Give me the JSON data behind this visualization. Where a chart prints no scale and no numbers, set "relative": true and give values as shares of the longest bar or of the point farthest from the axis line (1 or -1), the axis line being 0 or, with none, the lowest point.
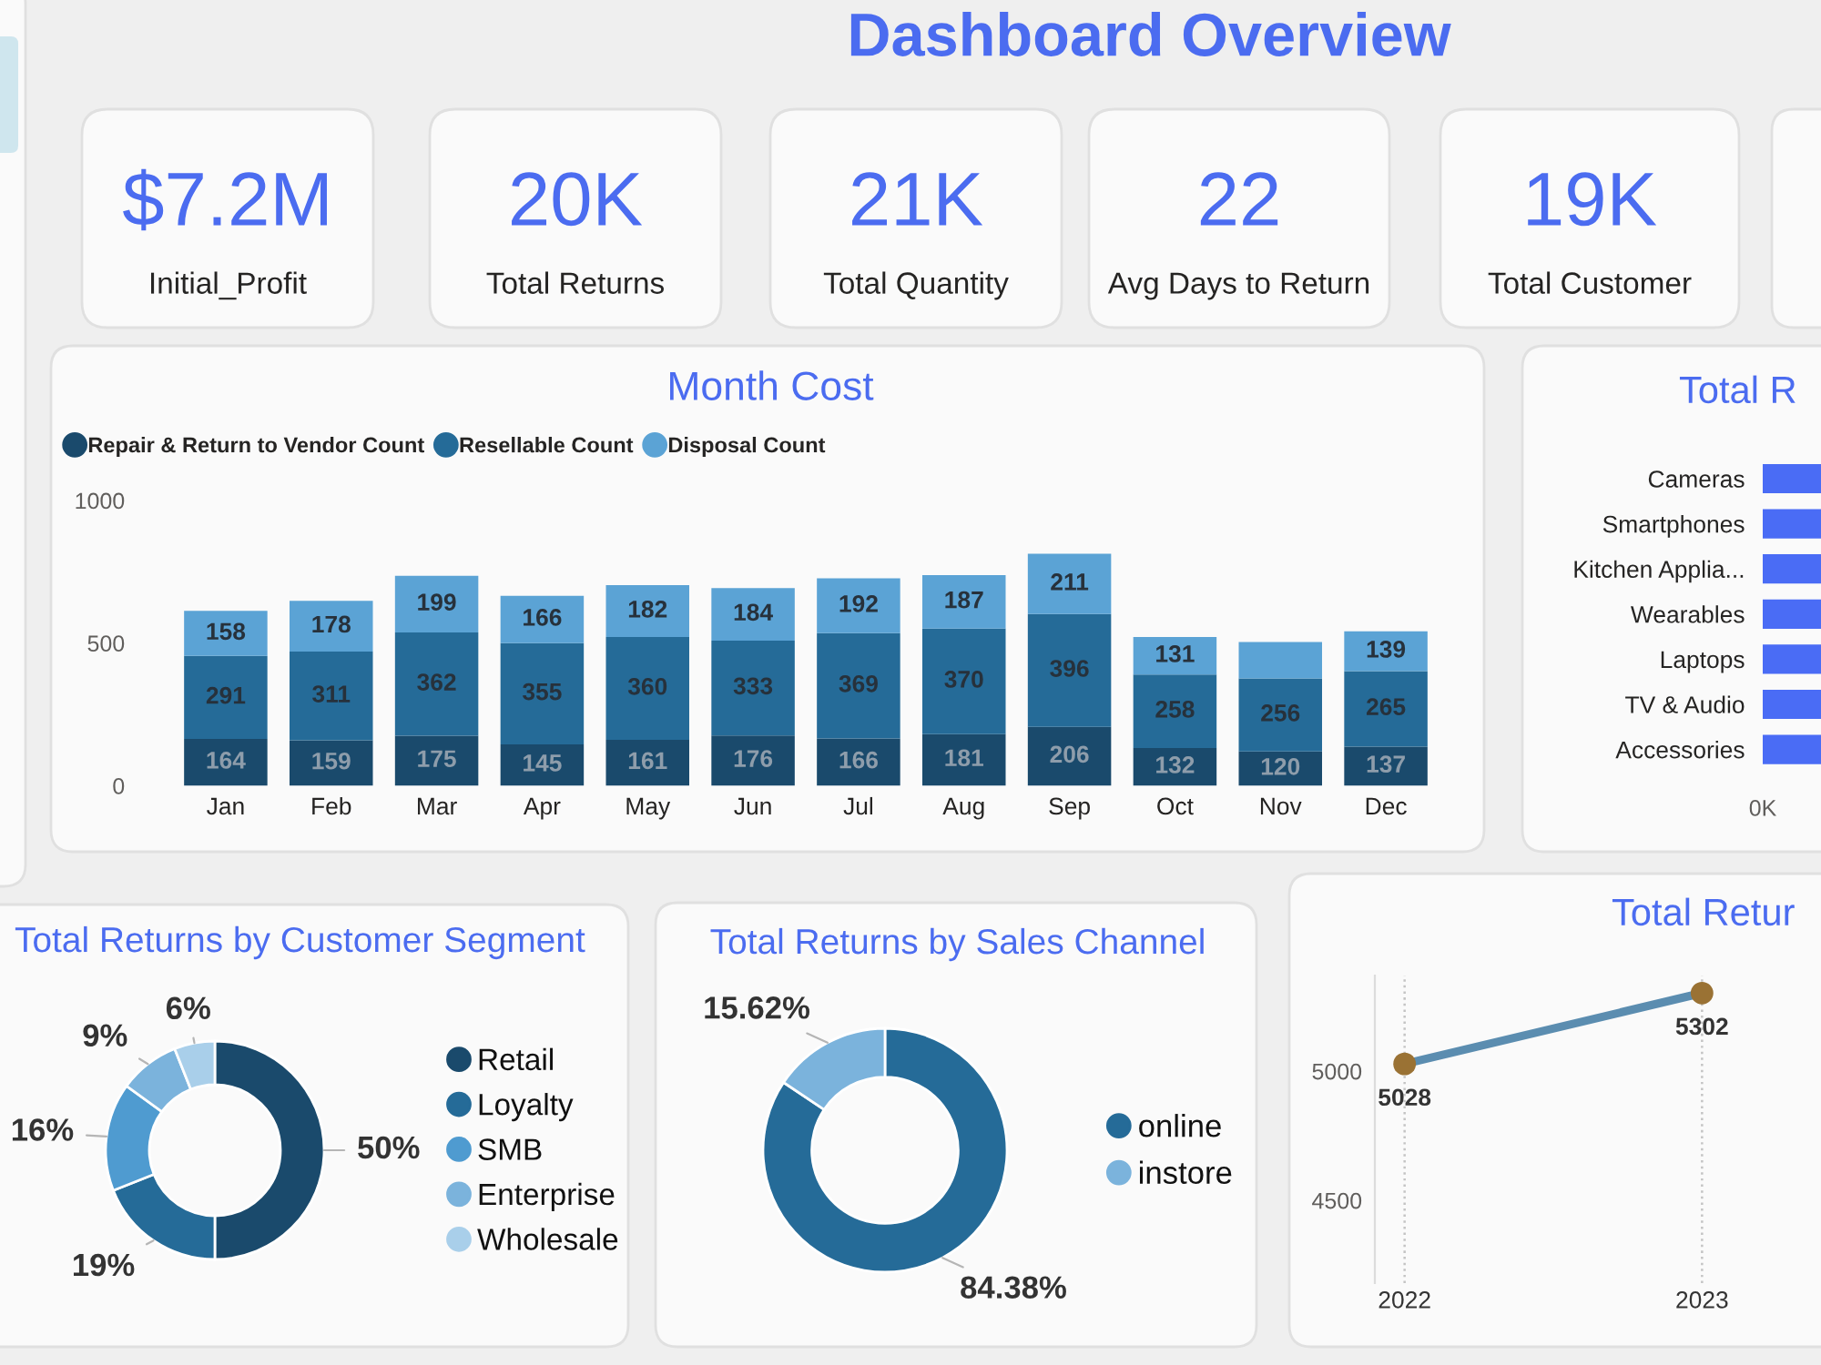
{
  "chart_data": [
    {
      "type": "other",
      "title": "Dashboard Overview",
      "categories": [
        "Initial_Profit",
        "Total Returns",
        "Total Quantity",
        "Avg Days to Return",
        "Total Customer"
      ],
      "value_labels": [
        "$7.2M",
        "20K",
        "21K",
        "22",
        "19K"
      ],
      "color": "#4b6cf0"
    },
    {
      "type": "bar",
      "title": "Month Cost",
      "stacked": true,
      "categories": [
        "Jan",
        "Feb",
        "Mar",
        "Apr",
        "May",
        "Jun",
        "Jul",
        "Aug",
        "Sep",
        "Oct",
        "Nov",
        "Dec"
      ],
      "series": [
        {
          "name": "Repair & Return to Vendor Count",
          "color": "#1a4a6c",
          "values": [
            164,
            159,
            175,
            145,
            161,
            176,
            166,
            181,
            206,
            132,
            120,
            137
          ],
          "value_labels": [
            "164",
            "159",
            "175",
            "145",
            "161",
            "176",
            "166",
            "181",
            "206",
            "132",
            "120",
            "137"
          ]
        },
        {
          "name": "Resellable Count",
          "color": "#256b98",
          "values": [
            291,
            311,
            362,
            355,
            360,
            333,
            369,
            370,
            396,
            258,
            256,
            265
          ],
          "value_labels": [
            "291",
            "311",
            "362",
            "355",
            "360",
            "333",
            "369",
            "370",
            "396",
            "258",
            "256",
            "265"
          ]
        },
        {
          "name": "Disposal Count",
          "color": "#5ba3d5",
          "values": [
            158,
            178,
            199,
            166,
            182,
            184,
            192,
            187,
            211,
            131,
            128,
            139
          ],
          "value_labels": [
            "158",
            "178",
            "199",
            "166",
            "182",
            "184",
            "192",
            "187",
            "211",
            "131",
            null,
            "139"
          ]
        }
      ],
      "ylim": [
        0,
        1000
      ],
      "yticks": [
        0,
        500,
        1000
      ],
      "legend": "top left"
    },
    {
      "type": "bar",
      "orientation": "horizontal",
      "relative": true,
      "title": "Total R",
      "categories": [
        "Cameras",
        "Smartphones",
        "Kitchen Applia...",
        "Wearables",
        "Laptops",
        "TV & Audio",
        "Accessories"
      ],
      "values": [
        1,
        1,
        1,
        1,
        1,
        1,
        1
      ],
      "color": "#4a6cf5",
      "annotations": [
        "0K"
      ]
    },
    {
      "type": "donut",
      "title": "Total Returns by Customer Segment",
      "categories": [
        "Retail",
        "Loyalty",
        "SMB",
        "Enterprise",
        "Wholesale"
      ],
      "values": [
        50,
        19,
        16,
        9,
        6
      ],
      "colors": [
        "#1a4a6c",
        "#256b98",
        "#4f9bd0",
        "#7bb3dc",
        "#a9cfea"
      ],
      "value_labels": [
        "50%",
        "19%",
        "16%",
        "9%",
        "6%"
      ],
      "legend": "right"
    },
    {
      "type": "donut",
      "title": "Total Returns by Sales Channel",
      "categories": [
        "online",
        "instore"
      ],
      "values": [
        84.38,
        15.62
      ],
      "colors": [
        "#256b98",
        "#7bb3dc"
      ],
      "value_labels": [
        "84.38%",
        "15.62%"
      ],
      "legend": "right"
    },
    {
      "type": "line",
      "title": "Total Retur",
      "categories": [
        "2022",
        "2023"
      ],
      "series": [
        {
          "color": "#5b8db0",
          "colors": [
            "#9a7234",
            "#9a7234"
          ],
          "values": [
            5028,
            5302
          ]
        }
      ],
      "marker": "circle",
      "ylim": [
        4180,
        5370
      ],
      "yticks": [
        4500,
        5000
      ],
      "grid": "x",
      "data_labels": true
    }
  ]
}
